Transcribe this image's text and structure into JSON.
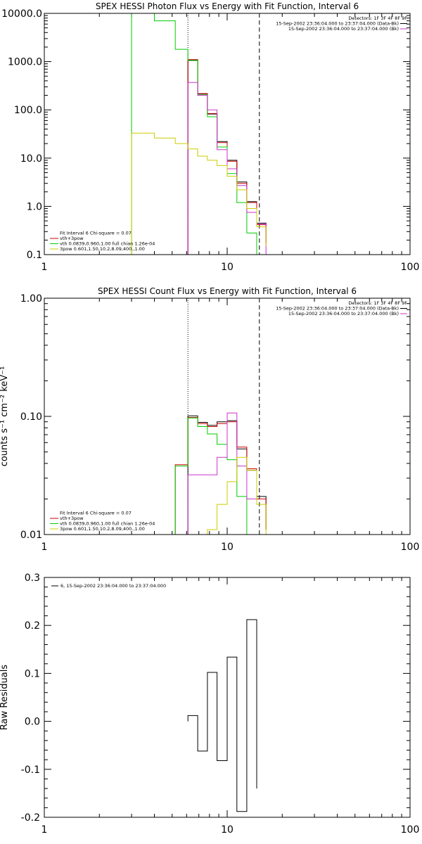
{
  "chart_data": [
    {
      "type": "line",
      "title": "SPEX HESSI Photon Flux vs Energy with Fit Function, Interval 6",
      "ylabel": "",
      "xlabel": "",
      "xscale": "log",
      "yscale": "log",
      "xlim": [
        1,
        100
      ],
      "ylim": [
        0.1,
        10000
      ],
      "x_ticks": [
        "1",
        "10",
        "100"
      ],
      "y_ticks": [
        "0.1",
        "1.0",
        "10.0",
        "100.0",
        "1000.0",
        "10000.0"
      ],
      "vlines": [
        {
          "x": 6.1,
          "style": "dotted"
        },
        {
          "x": 15.0,
          "style": "dashed"
        }
      ],
      "legend_top_right": [
        "Detectors: 1F 3F 4F 8F 9F",
        "15-Sep-2002 23:36:04.000 to 23:37:04.000 (Data-Bk)",
        "15-Sep-2002 23:36:04.000 to 23:37:04.000 (Bk)"
      ],
      "legend_top_right_colors": [
        "",
        "#000000",
        "#cc33cc"
      ],
      "legend_bottom_left": [
        "Fit Interval 6   Chi-square = 0.07",
        "vth+3pow",
        "vth 0.0839,0.960,1.00  full chian 1.26e-04",
        "3pow 0.601,1.50,10.2,8.09,400.,1.00"
      ],
      "legend_bottom_left_colors": [
        "",
        "#cc0000",
        "#00cc00",
        "#cccc00"
      ],
      "series": [
        {
          "color": "#000000",
          "edges": [
            6.1,
            6.9,
            7.8,
            8.8,
            10.0,
            11.3,
            12.8,
            14.5,
            16.3
          ],
          "values": [
            1080,
            215,
            82,
            22,
            9.0,
            3.2,
            1.25,
            0.45,
            0.18
          ]
        },
        {
          "color": "#cc0000",
          "edges": [
            6.1,
            6.9,
            7.8,
            8.8,
            10.0,
            11.3,
            12.8,
            14.5,
            16.3
          ],
          "values": [
            1100,
            218,
            84,
            21,
            8.6,
            3.0,
            1.2,
            0.42,
            0.17
          ]
        },
        {
          "color": "#00cc00",
          "edges": [
            3.0,
            4.0,
            5.2,
            6.1,
            6.9,
            7.8,
            8.8,
            10.0,
            11.3,
            12.8,
            14.5
          ],
          "values": [
            10000,
            7000,
            1800,
            1050,
            205,
            72,
            17,
            4.8,
            1.2,
            0.28,
            0.05
          ]
        },
        {
          "color": "#cc33cc",
          "edges": [
            6.1,
            6.9,
            7.8,
            8.8,
            10.0,
            11.3,
            12.8,
            14.5,
            16.3
          ],
          "values": [
            370,
            200,
            100,
            15,
            6.0,
            2.7,
            0.75,
            0.43,
            0.1
          ]
        },
        {
          "color": "#cccc00",
          "edges": [
            3.0,
            4.0,
            5.2,
            6.1,
            6.9,
            7.8,
            8.8,
            10.0,
            11.3,
            12.8,
            14.5,
            16.3
          ],
          "values": [
            33,
            26,
            20,
            15.5,
            11,
            9.0,
            7.0,
            4.2,
            2.2,
            0.9,
            0.38,
            0.15
          ]
        }
      ]
    },
    {
      "type": "line",
      "title": "SPEX HESSI Count Flux vs Energy with Fit Function, Interval 6",
      "ylabel": "counts s⁻¹ cm⁻² keV⁻¹",
      "xlabel": "",
      "xscale": "log",
      "yscale": "log",
      "xlim": [
        1,
        100
      ],
      "ylim": [
        0.01,
        1.0
      ],
      "x_ticks": [
        "1",
        "10",
        "100"
      ],
      "y_ticks": [
        "0.01",
        "0.10",
        "1.00"
      ],
      "vlines": [
        {
          "x": 6.1,
          "style": "dotted"
        },
        {
          "x": 15.0,
          "style": "dashed"
        }
      ],
      "legend_top_right": [
        "Detectors: 1F 3F 4F 8F 9F",
        "15-Sep-2002 23:36:04.000 to 23:37:04.000 (Data-Bk)",
        "15-Sep-2002 23:36:04.000 to 23:37:04.000 (Bk)"
      ],
      "legend_top_right_colors": [
        "",
        "#000000",
        "#cc33cc"
      ],
      "legend_bottom_left": [
        "Fit Interval 6   Chi-square = 0.07",
        "vth+3pow",
        "vth 0.0839,0.960,1.00  full chian 1.26e-04",
        "3pow 0.601,1.50,10.2,8.09,400.,1.00"
      ],
      "legend_bottom_left_colors": [
        "",
        "#cc0000",
        "#00cc00",
        "#cccc00"
      ],
      "series": [
        {
          "color": "#000000",
          "edges": [
            6.1,
            6.9,
            7.8,
            8.8,
            10.0,
            11.3,
            12.8,
            14.5,
            16.3
          ],
          "values": [
            0.101,
            0.089,
            0.084,
            0.09,
            0.092,
            0.053,
            0.035,
            0.021,
            0.011
          ]
        },
        {
          "color": "#cc0000",
          "edges": [
            5.2,
            6.1,
            6.9,
            7.8,
            8.8,
            10.0,
            11.3,
            12.8,
            14.5,
            16.3
          ],
          "values": [
            0.039,
            0.098,
            0.087,
            0.082,
            0.087,
            0.09,
            0.055,
            0.036,
            0.02,
            0.011
          ]
        },
        {
          "color": "#00cc00",
          "edges": [
            5.2,
            6.1,
            6.9,
            7.8,
            8.8,
            10.0,
            11.3,
            12.8
          ],
          "values": [
            0.038,
            0.097,
            0.082,
            0.071,
            0.058,
            0.043,
            0.021,
            0.005
          ]
        },
        {
          "color": "#cc33cc",
          "edges": [
            6.1,
            6.9,
            7.8,
            8.8,
            10.0,
            11.3,
            12.8,
            14.5
          ],
          "values": [
            0.032,
            0.032,
            0.032,
            0.045,
            0.107,
            0.038,
            0.02,
            0.02
          ]
        },
        {
          "color": "#cccc00",
          "edges": [
            7.8,
            8.8,
            10.0,
            11.3,
            12.8,
            14.5,
            16.3
          ],
          "values": [
            0.011,
            0.018,
            0.028,
            0.045,
            0.035,
            0.018,
            0.009
          ]
        }
      ]
    },
    {
      "type": "line",
      "title": "",
      "ylabel": "Raw Residuals",
      "xlabel": "",
      "xscale": "log",
      "yscale": "linear",
      "xlim": [
        1,
        100
      ],
      "ylim": [
        -0.2,
        0.3
      ],
      "x_ticks": [
        "1",
        "10",
        "100"
      ],
      "y_ticks": [
        "-0.2",
        "-0.1",
        "0.0",
        "0.1",
        "0.2",
        "0.3"
      ],
      "legend_top_left": [
        "6, 15-Sep-2002 23:36:04.000 to 23:37:04.000"
      ],
      "legend_top_left_colors": [
        "#000000"
      ],
      "series": [
        {
          "color": "#000000",
          "edges": [
            6.1,
            6.9,
            7.8,
            8.8,
            10.0,
            11.3,
            12.8,
            14.5
          ],
          "values": [
            0.012,
            -0.062,
            0.102,
            -0.082,
            0.134,
            -0.188,
            0.212,
            -0.14
          ]
        }
      ]
    }
  ]
}
